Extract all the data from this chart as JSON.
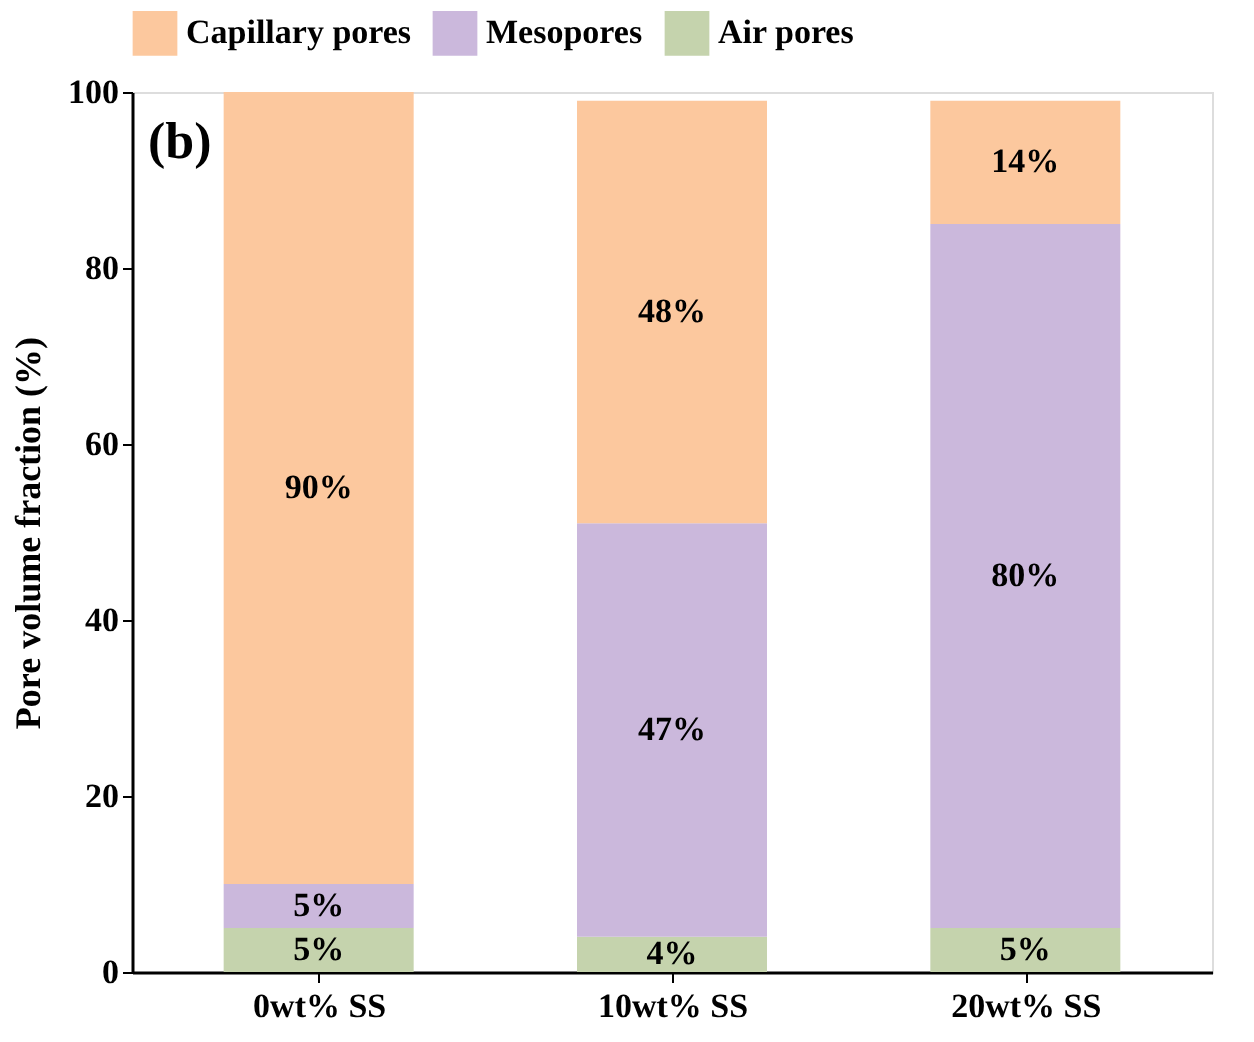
{
  "chart_data": {
    "type": "bar",
    "stacked": true,
    "ylabel": "Pore volume fraction (%)",
    "categories": [
      "0wt% SS",
      "10wt% SS",
      "20wt% SS"
    ],
    "series": [
      {
        "name": "Air pores",
        "color": "#c5d3ad",
        "values": [
          5,
          4,
          5
        ],
        "value_labels": [
          "5%",
          "4%",
          "5%"
        ]
      },
      {
        "name": "Mesopores",
        "color": "#cbb8dc",
        "values": [
          5,
          47,
          80
        ],
        "value_labels": [
          "5%",
          "47%",
          "80%"
        ]
      },
      {
        "name": "Capillary pores",
        "color": "#fcc89e",
        "values": [
          90,
          48,
          14
        ],
        "value_labels": [
          "90%",
          "48%",
          "14%"
        ]
      }
    ],
    "ylim": [
      0,
      100
    ],
    "yticks": [
      0,
      20,
      40,
      60,
      80,
      100
    ],
    "grid": false,
    "legend": "top",
    "annotations": [
      "(b)"
    ]
  }
}
